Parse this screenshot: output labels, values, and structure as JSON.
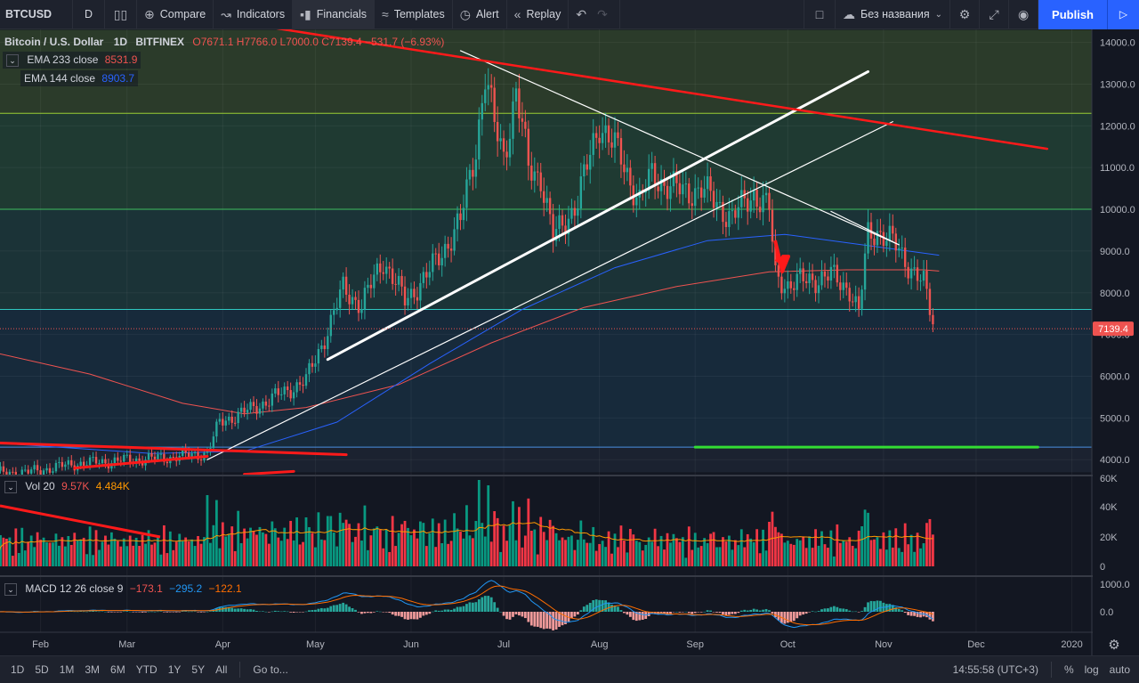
{
  "toolbar": {
    "symbol": "BTCUSD",
    "interval": "D",
    "compare": "Compare",
    "indicators": "Indicators",
    "financials": "Financials",
    "templates": "Templates",
    "alert": "Alert",
    "replay": "Replay",
    "layout_name": "Без названия",
    "publish": "Publish"
  },
  "legend": {
    "title": "Bitcoin / U.S. Dollar",
    "interval": "1D",
    "exchange": "BITFINEX",
    "open": "O7671.1",
    "high": "H7766.0",
    "low": "L7000.0",
    "close": "C7139.4",
    "change": "−531.7 (−6.93%)",
    "ema1_label": "EMA 233 close",
    "ema1_value": "8531.9",
    "ema2_label": "EMA 144 close",
    "ema2_value": "8903.7",
    "vol_label": "Vol 20",
    "vol_value1": "9.57K",
    "vol_value2": "4.484K",
    "macd_label": "MACD 12 26 close 9",
    "macd_v1": "−173.1",
    "macd_v2": "−295.2",
    "macd_v3": "−122.1"
  },
  "colors": {
    "up": "#26a69a",
    "down": "#ef5350",
    "ema233": "#ef5350",
    "ema144": "#2962ff",
    "vol_up": "#089981",
    "vol_down": "#f23645",
    "macd": "#2196f3",
    "signal": "#ff6d00",
    "price_tag": "#ef5350"
  },
  "chart_data": {
    "type": "candlestick",
    "symbol": "BTCUSD",
    "price_ticks": [
      4000,
      5000,
      6000,
      7000,
      8000,
      9000,
      10000,
      11000,
      12000,
      13000,
      14000
    ],
    "price_tick_labels": [
      "4000.0",
      "5000.0",
      "6000.0",
      "7000.0",
      "8000.0",
      "9000.0",
      "10000.0",
      "11000.0",
      "12000.0",
      "13000.0",
      "14000.0"
    ],
    "ylim": [
      3700,
      14300
    ],
    "last_price": "7139.4",
    "volume_ticks": [
      "60K",
      "40K",
      "20K",
      "0"
    ],
    "macd_ticks": [
      "1000.0",
      "0.0"
    ],
    "x_labels": [
      "Feb",
      "Mar",
      "Apr",
      "May",
      "Jun",
      "Jul",
      "Aug",
      "Sep",
      "Oct",
      "Nov",
      "Dec",
      "2020"
    ],
    "x_label_days": [
      14,
      42,
      73,
      103,
      134,
      164,
      195,
      226,
      256,
      287,
      317,
      348
    ],
    "horizontal_levels": [
      4300,
      7600,
      10000,
      12300
    ],
    "anchors": [
      [
        0,
        3680
      ],
      [
        10,
        3700
      ],
      [
        25,
        3900
      ],
      [
        40,
        3980
      ],
      [
        55,
        4050
      ],
      [
        68,
        4150
      ],
      [
        72,
        4900
      ],
      [
        82,
        5200
      ],
      [
        95,
        5700
      ],
      [
        100,
        5900
      ],
      [
        107,
        7100
      ],
      [
        112,
        8100
      ],
      [
        118,
        7700
      ],
      [
        125,
        8800
      ],
      [
        132,
        7800
      ],
      [
        140,
        8500
      ],
      [
        150,
        9700
      ],
      [
        155,
        11500
      ],
      [
        158,
        13200
      ],
      [
        161,
        12000
      ],
      [
        164,
        11300
      ],
      [
        168,
        12800
      ],
      [
        172,
        11000
      ],
      [
        176,
        10800
      ],
      [
        180,
        9300
      ],
      [
        188,
        10200
      ],
      [
        195,
        12100
      ],
      [
        202,
        11200
      ],
      [
        208,
        10200
      ],
      [
        212,
        10800
      ],
      [
        222,
        10400
      ],
      [
        228,
        10500
      ],
      [
        232,
        10200
      ],
      [
        238,
        9800
      ],
      [
        245,
        10400
      ],
      [
        250,
        10000
      ],
      [
        252,
        8400
      ],
      [
        256,
        8200
      ],
      [
        262,
        8300
      ],
      [
        270,
        8400
      ],
      [
        276,
        8100
      ],
      [
        279,
        7500
      ],
      [
        282,
        9400
      ],
      [
        285,
        9500
      ],
      [
        290,
        9200
      ],
      [
        296,
        8600
      ],
      [
        300,
        8200
      ],
      [
        303,
        7300
      ]
    ],
    "ema233": [
      [
        0,
        6550
      ],
      [
        30,
        6050
      ],
      [
        60,
        5350
      ],
      [
        80,
        5100
      ],
      [
        100,
        5250
      ],
      [
        130,
        5800
      ],
      [
        160,
        6800
      ],
      [
        190,
        7650
      ],
      [
        220,
        8150
      ],
      [
        250,
        8500
      ],
      [
        275,
        8550
      ],
      [
        300,
        8550
      ],
      [
        305,
        8520
      ]
    ],
    "ema144": [
      [
        0,
        4400
      ],
      [
        50,
        4150
      ],
      [
        80,
        4200
      ],
      [
        110,
        4900
      ],
      [
        140,
        6300
      ],
      [
        170,
        7600
      ],
      [
        200,
        8600
      ],
      [
        230,
        9250
      ],
      [
        255,
        9400
      ],
      [
        280,
        9150
      ],
      [
        305,
        8900
      ]
    ],
    "drawings": [
      {
        "kind": "line",
        "color": "#ffffff",
        "width": 3,
        "p1": [
          107,
          6400
        ],
        "p2": [
          282,
          13300
        ]
      },
      {
        "kind": "line",
        "color": "#ffffff",
        "width": 1.2,
        "p1": [
          68,
          4000
        ],
        "p2": [
          290,
          12100
        ]
      },
      {
        "kind": "line",
        "color": "#ffffff",
        "width": 1.2,
        "p1": [
          150,
          13800
        ],
        "p2": [
          292,
          9150
        ]
      },
      {
        "kind": "line",
        "color": "#ffffff",
        "width": 1.2,
        "p1": [
          270,
          9950
        ],
        "p2": [
          292,
          9150
        ]
      },
      {
        "kind": "line",
        "color": "#ff1a1a",
        "width": 2.5,
        "p1": [
          85,
          14400
        ],
        "p2": [
          340,
          11450
        ]
      },
      {
        "kind": "line",
        "color": "#ff1a1a",
        "width": 3,
        "p1": [
          0,
          4400
        ],
        "p2": [
          113,
          4120
        ]
      },
      {
        "kind": "line",
        "color": "#ff1a1a",
        "width": 3,
        "p1": [
          25,
          3800
        ],
        "p2": [
          68,
          4080
        ]
      },
      {
        "kind": "line",
        "color": "#ff1a1a",
        "width": 3,
        "p1": [
          80,
          3650
        ],
        "p2": [
          96,
          3720
        ]
      },
      {
        "kind": "line",
        "color": "#33dd33",
        "width": 3,
        "p1": [
          226,
          4300
        ],
        "p2": [
          337,
          4300
        ]
      }
    ]
  },
  "bottombar": {
    "ranges": [
      "1D",
      "5D",
      "1M",
      "3M",
      "6M",
      "YTD",
      "1Y",
      "5Y",
      "All"
    ],
    "goto": "Go to...",
    "time": "14:55:58 (UTC+3)",
    "percent": "%",
    "log": "log",
    "auto": "auto"
  }
}
